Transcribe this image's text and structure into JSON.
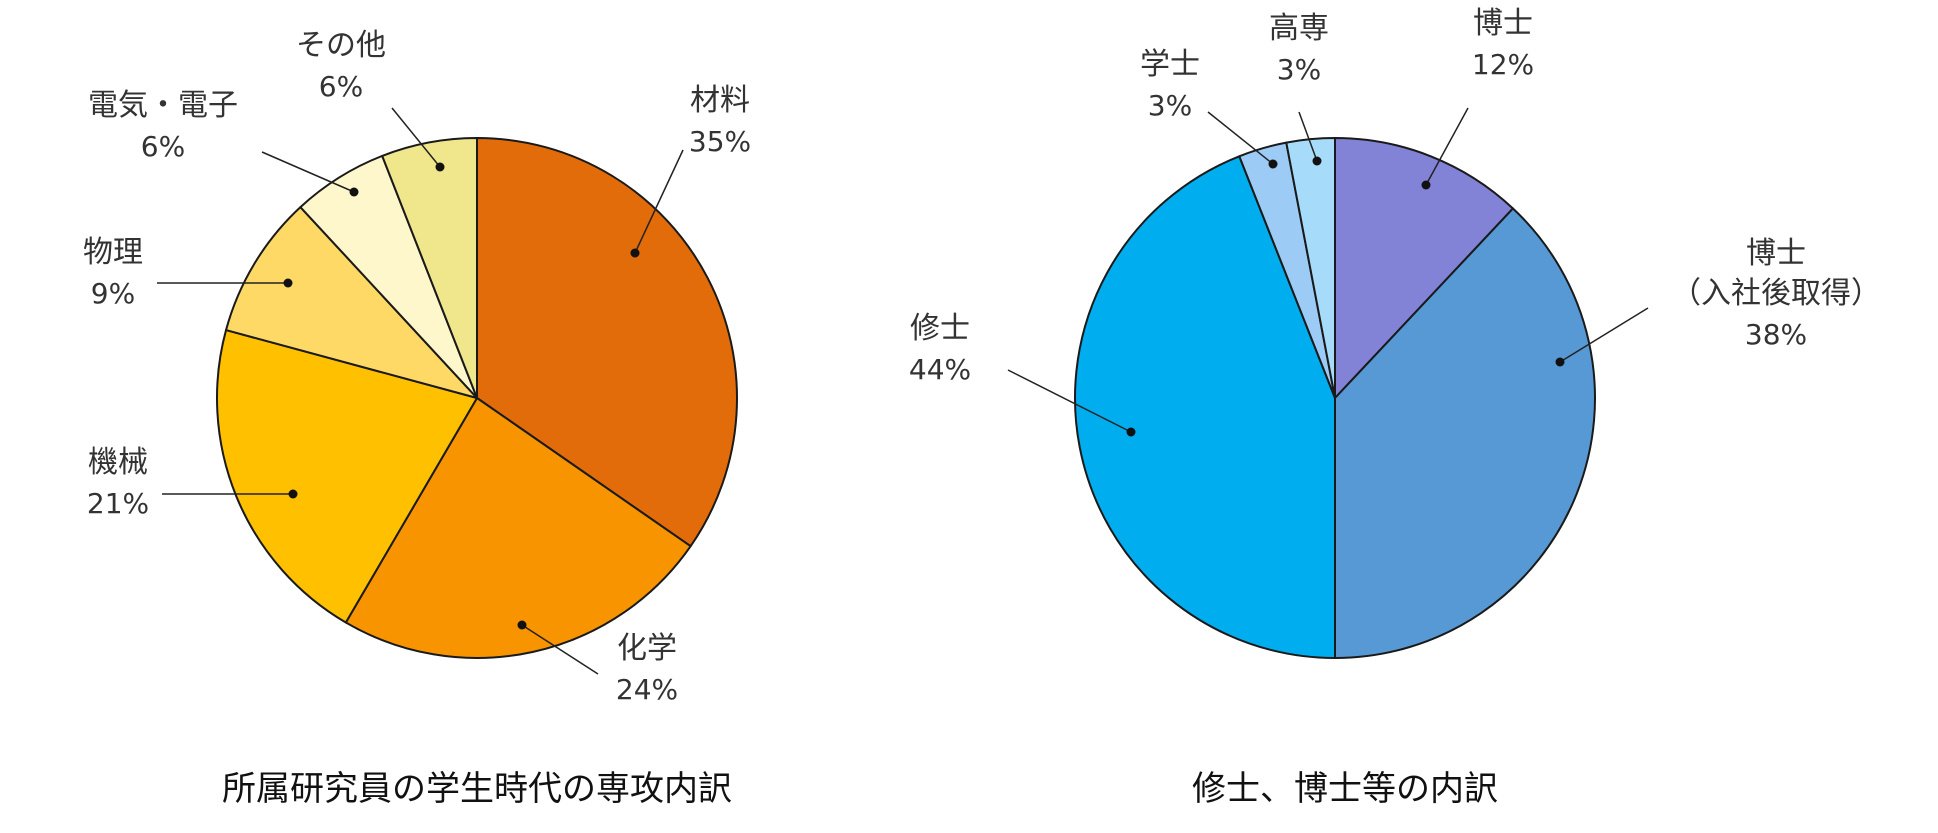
{
  "chart_data": [
    {
      "type": "pie",
      "title": "所属研究員の学生時代の専攻内訳",
      "slices": [
        {
          "label": [
            "材料"
          ],
          "value": 35,
          "pct_label": "35%",
          "color": "#E36C0A"
        },
        {
          "label": [
            "化学"
          ],
          "value": 24,
          "pct_label": "24%",
          "color": "#F79400"
        },
        {
          "label": [
            "機械"
          ],
          "value": 21,
          "pct_label": "21%",
          "color": "#FFC000"
        },
        {
          "label": [
            "物理"
          ],
          "value": 9,
          "pct_label": "9%",
          "color": "#FFD966"
        },
        {
          "label": [
            "電気・電子"
          ],
          "value": 6,
          "pct_label": "6%",
          "color": "#FFF7CC"
        },
        {
          "label": [
            "その他"
          ],
          "value": 6,
          "pct_label": "6%",
          "color": "#F0E68C"
        }
      ]
    },
    {
      "type": "pie",
      "title": "修士、博士等の内訳",
      "slices": [
        {
          "label": [
            "博士"
          ],
          "value": 12,
          "pct_label": "12%",
          "color": "#8282D6"
        },
        {
          "label": [
            "博士",
            "（入社後取得）"
          ],
          "value": 38,
          "pct_label": "38%",
          "color": "#5699D4"
        },
        {
          "label": [
            "修士"
          ],
          "value": 44,
          "pct_label": "44%",
          "color": "#00AEEF"
        },
        {
          "label": [
            "学士"
          ],
          "value": 3,
          "pct_label": "3%",
          "color": "#9CCBF6"
        },
        {
          "label": [
            "高専"
          ],
          "value": 3,
          "pct_label": "3%",
          "color": "#A6DCFA"
        }
      ]
    }
  ]
}
